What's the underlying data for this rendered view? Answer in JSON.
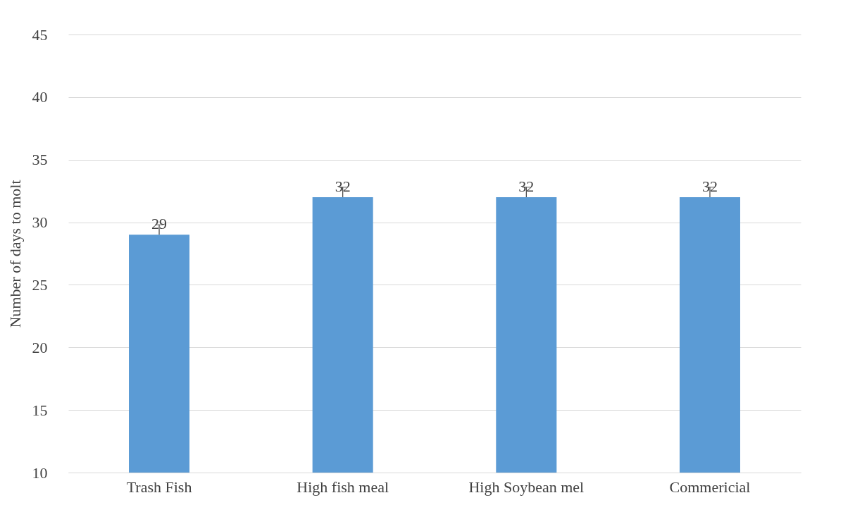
{
  "chart_data": {
    "type": "bar",
    "ylabel": "Number of days to molt",
    "categories": [
      "Trash Fish",
      "High fish meal",
      "High Soybean mel",
      "Commericial"
    ],
    "values": [
      29,
      32,
      32,
      32
    ],
    "color": "#5b9bd5",
    "errors": [
      [
        29,
        29.8
      ],
      [
        32,
        32.8
      ],
      [
        32,
        32.8
      ],
      [
        32,
        32.8
      ]
    ],
    "ylim": [
      10,
      45
    ],
    "yticks": [
      10,
      15,
      20,
      25,
      30,
      35,
      40,
      45
    ],
    "grid": "y",
    "data_labels": true
  }
}
